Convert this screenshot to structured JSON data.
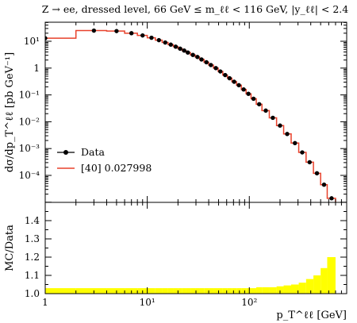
{
  "chart_data": [
    {
      "type": "line",
      "title": "Z → ee, dressed level, 66 GeV ≤ m_ℓℓ < 116 GeV, |y_ℓℓ| < 2.4",
      "ylabel": "dσ/dp_T^ℓℓ [pb GeV⁻¹]",
      "xscale": "log",
      "yscale": "log",
      "xlim": [
        1,
        900
      ],
      "ylim": [
        8e-06,
        50
      ],
      "x_ticks": [
        "1",
        "10¹",
        "10²"
      ],
      "y_ticks": [
        "10⁻⁴",
        "10⁻³",
        "10⁻²",
        "10⁻¹",
        "1",
        "10",
        "10¹"
      ],
      "legend_position": "left",
      "series": [
        {
          "name": "Data",
          "style": "points",
          "color": "#000000",
          "x": [
            1,
            3,
            5,
            7,
            9,
            11,
            13,
            15,
            17,
            19,
            21,
            23,
            25,
            28,
            31,
            34,
            38,
            42,
            47,
            52,
            58,
            64,
            71,
            79,
            88,
            98,
            110,
            125,
            145,
            170,
            200,
            235,
            280,
            330,
            390,
            460,
            540,
            640
          ],
          "y": [
            13,
            25,
            24,
            20,
            16.5,
            13.5,
            11,
            9,
            7.5,
            6.3,
            5.3,
            4.5,
            3.8,
            3.1,
            2.6,
            2.1,
            1.65,
            1.3,
            1.0,
            0.75,
            0.55,
            0.42,
            0.31,
            0.23,
            0.16,
            0.11,
            0.072,
            0.045,
            0.026,
            0.014,
            0.0072,
            0.0035,
            0.0016,
            0.00072,
            0.00031,
            0.00012,
            4.5e-05,
            1.4e-05
          ]
        },
        {
          "name": "[40] 0.027998",
          "style": "step",
          "color": "#e8412b",
          "edges": [
            1,
            2,
            4,
            6,
            8,
            10,
            12,
            14,
            16,
            18,
            20,
            22,
            24,
            26.5,
            29.5,
            32.5,
            36,
            40,
            44.5,
            49.5,
            55,
            61,
            67.5,
            75,
            83.5,
            93,
            104,
            117,
            133,
            157,
            185,
            217,
            257,
            305,
            360,
            425,
            500,
            580,
            700
          ],
          "y": [
            13,
            25,
            24,
            20,
            16.5,
            13.5,
            11,
            9,
            7.5,
            6.3,
            5.3,
            4.5,
            3.8,
            3.1,
            2.6,
            2.1,
            1.65,
            1.3,
            1.0,
            0.75,
            0.55,
            0.42,
            0.31,
            0.23,
            0.16,
            0.11,
            0.072,
            0.045,
            0.026,
            0.014,
            0.0072,
            0.0035,
            0.0016,
            0.00072,
            0.00031,
            0.00012,
            4.5e-05,
            1.4e-05
          ]
        }
      ]
    },
    {
      "type": "area",
      "ylabel": "MC/Data",
      "xlabel": "p_T^ℓℓ [GeV]",
      "xscale": "log",
      "xlim": [
        1,
        900
      ],
      "ylim": [
        1.0,
        1.5
      ],
      "x_ticks": [
        "1",
        "10¹",
        "10²"
      ],
      "y_ticks": [
        "1.0",
        "1.1",
        "1.2",
        "1.3",
        "1.4"
      ],
      "series": [
        {
          "name": "Data uncertainty",
          "style": "band",
          "color": "#ffff00",
          "edges": [
            1,
            2,
            4,
            6,
            8,
            10,
            12,
            14,
            16,
            18,
            20,
            22,
            24,
            26.5,
            29.5,
            32.5,
            36,
            40,
            44.5,
            49.5,
            55,
            61,
            67.5,
            75,
            83.5,
            93,
            104,
            117,
            133,
            157,
            185,
            217,
            257,
            305,
            360,
            425,
            500,
            580,
            700
          ],
          "upper": [
            1.03,
            1.03,
            1.03,
            1.03,
            1.03,
            1.03,
            1.03,
            1.03,
            1.03,
            1.03,
            1.03,
            1.03,
            1.03,
            1.03,
            1.03,
            1.03,
            1.03,
            1.03,
            1.03,
            1.03,
            1.03,
            1.03,
            1.03,
            1.03,
            1.03,
            1.03,
            1.03,
            1.035,
            1.035,
            1.035,
            1.04,
            1.045,
            1.05,
            1.06,
            1.08,
            1.1,
            1.14,
            1.2
          ],
          "lower": [
            1.0,
            1.0,
            1.0,
            1.0,
            1.0,
            1.0,
            1.0,
            1.0,
            1.0,
            1.0,
            1.0,
            1.0,
            1.0,
            1.0,
            1.0,
            1.0,
            1.0,
            1.0,
            1.0,
            1.0,
            1.0,
            1.0,
            1.0,
            1.0,
            1.0,
            1.0,
            1.0,
            1.0,
            1.0,
            1.0,
            1.0,
            1.0,
            1.0,
            1.0,
            1.0,
            1.0,
            1.0,
            1.0
          ]
        }
      ]
    }
  ],
  "legend": {
    "data_label": "Data",
    "mc_label": "[40] 0.027998"
  },
  "colors": {
    "mc_line": "#e8412b",
    "band": "#ffff00"
  }
}
